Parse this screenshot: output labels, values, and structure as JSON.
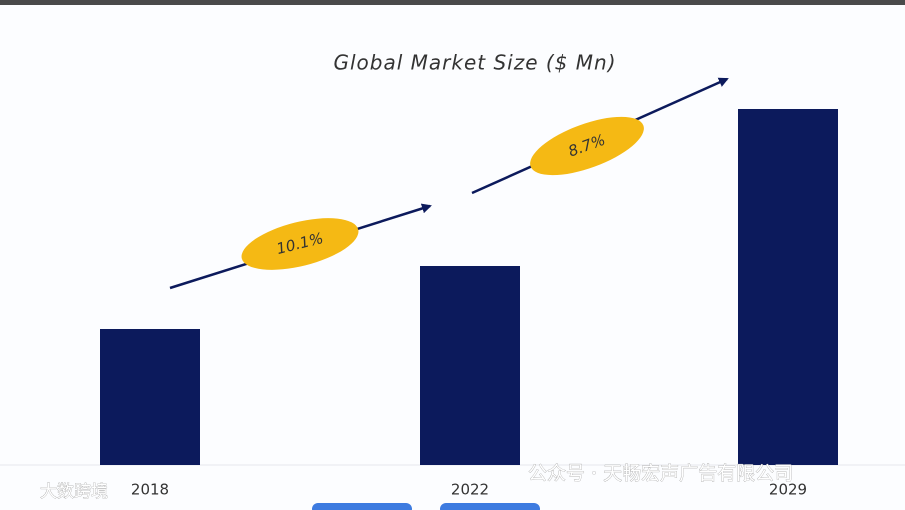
{
  "chart_data": {
    "type": "bar",
    "title": "Global Market Size ($ Mn)",
    "categories": [
      "2018",
      "2022",
      "2029"
    ],
    "values": [
      136,
      199,
      356
    ],
    "color": "#0c1a5c",
    "ylim": [
      0,
      400
    ],
    "annotations": [
      {
        "text": "10.1%"
      },
      {
        "text": "8.7%"
      }
    ],
    "watermarks": [
      "公众号 · 天畅宏声广告有限公司",
      "大数跨境"
    ]
  }
}
